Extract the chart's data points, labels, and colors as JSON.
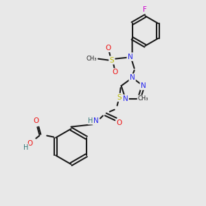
{
  "bg_color": "#e8e8e8",
  "colors": {
    "C": "#1a1a1a",
    "N": "#2222ee",
    "O": "#ee1111",
    "S": "#bbbb00",
    "F": "#cc00cc",
    "H": "#337777"
  },
  "lw": 1.5,
  "fs": 7.5,
  "fss": 6.0
}
